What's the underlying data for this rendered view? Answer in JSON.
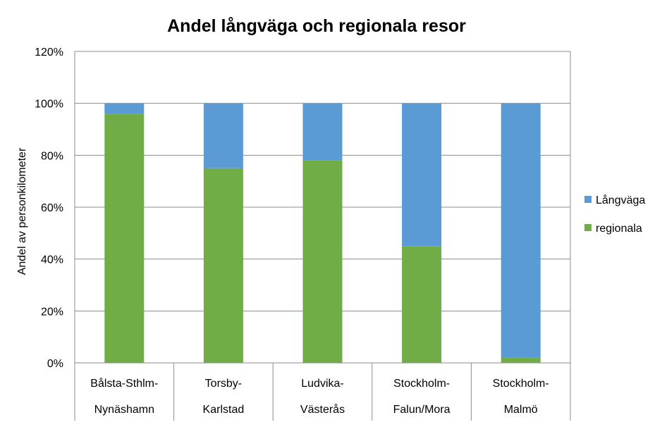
{
  "chart_data": {
    "type": "bar",
    "stacked": true,
    "title": "Andel långväga och regionala resor",
    "xlabel": "",
    "ylabel": "Andel av personkilometer",
    "ylim": [
      0,
      120
    ],
    "yticks": [
      "0%",
      "20%",
      "40%",
      "60%",
      "80%",
      "100%",
      "120%"
    ],
    "grid": true,
    "legend_position": "right",
    "categories": [
      [
        "Bålsta-Sthlm-",
        "Nynäshamn"
      ],
      [
        "Torsby-",
        "Karlstad"
      ],
      [
        "Ludvika-",
        "Västerås"
      ],
      [
        "Stockholm-",
        "Falun/Mora"
      ],
      [
        "Stockholm-",
        "Malmö"
      ]
    ],
    "series": [
      {
        "name": "regionala",
        "color": "#70ad47",
        "values": [
          96,
          75,
          78,
          45,
          2
        ]
      },
      {
        "name": "Långväga",
        "color": "#5b9bd5",
        "values": [
          4,
          25,
          22,
          55,
          98
        ]
      }
    ],
    "legend_order": [
      "Långväga",
      "regionala"
    ]
  }
}
